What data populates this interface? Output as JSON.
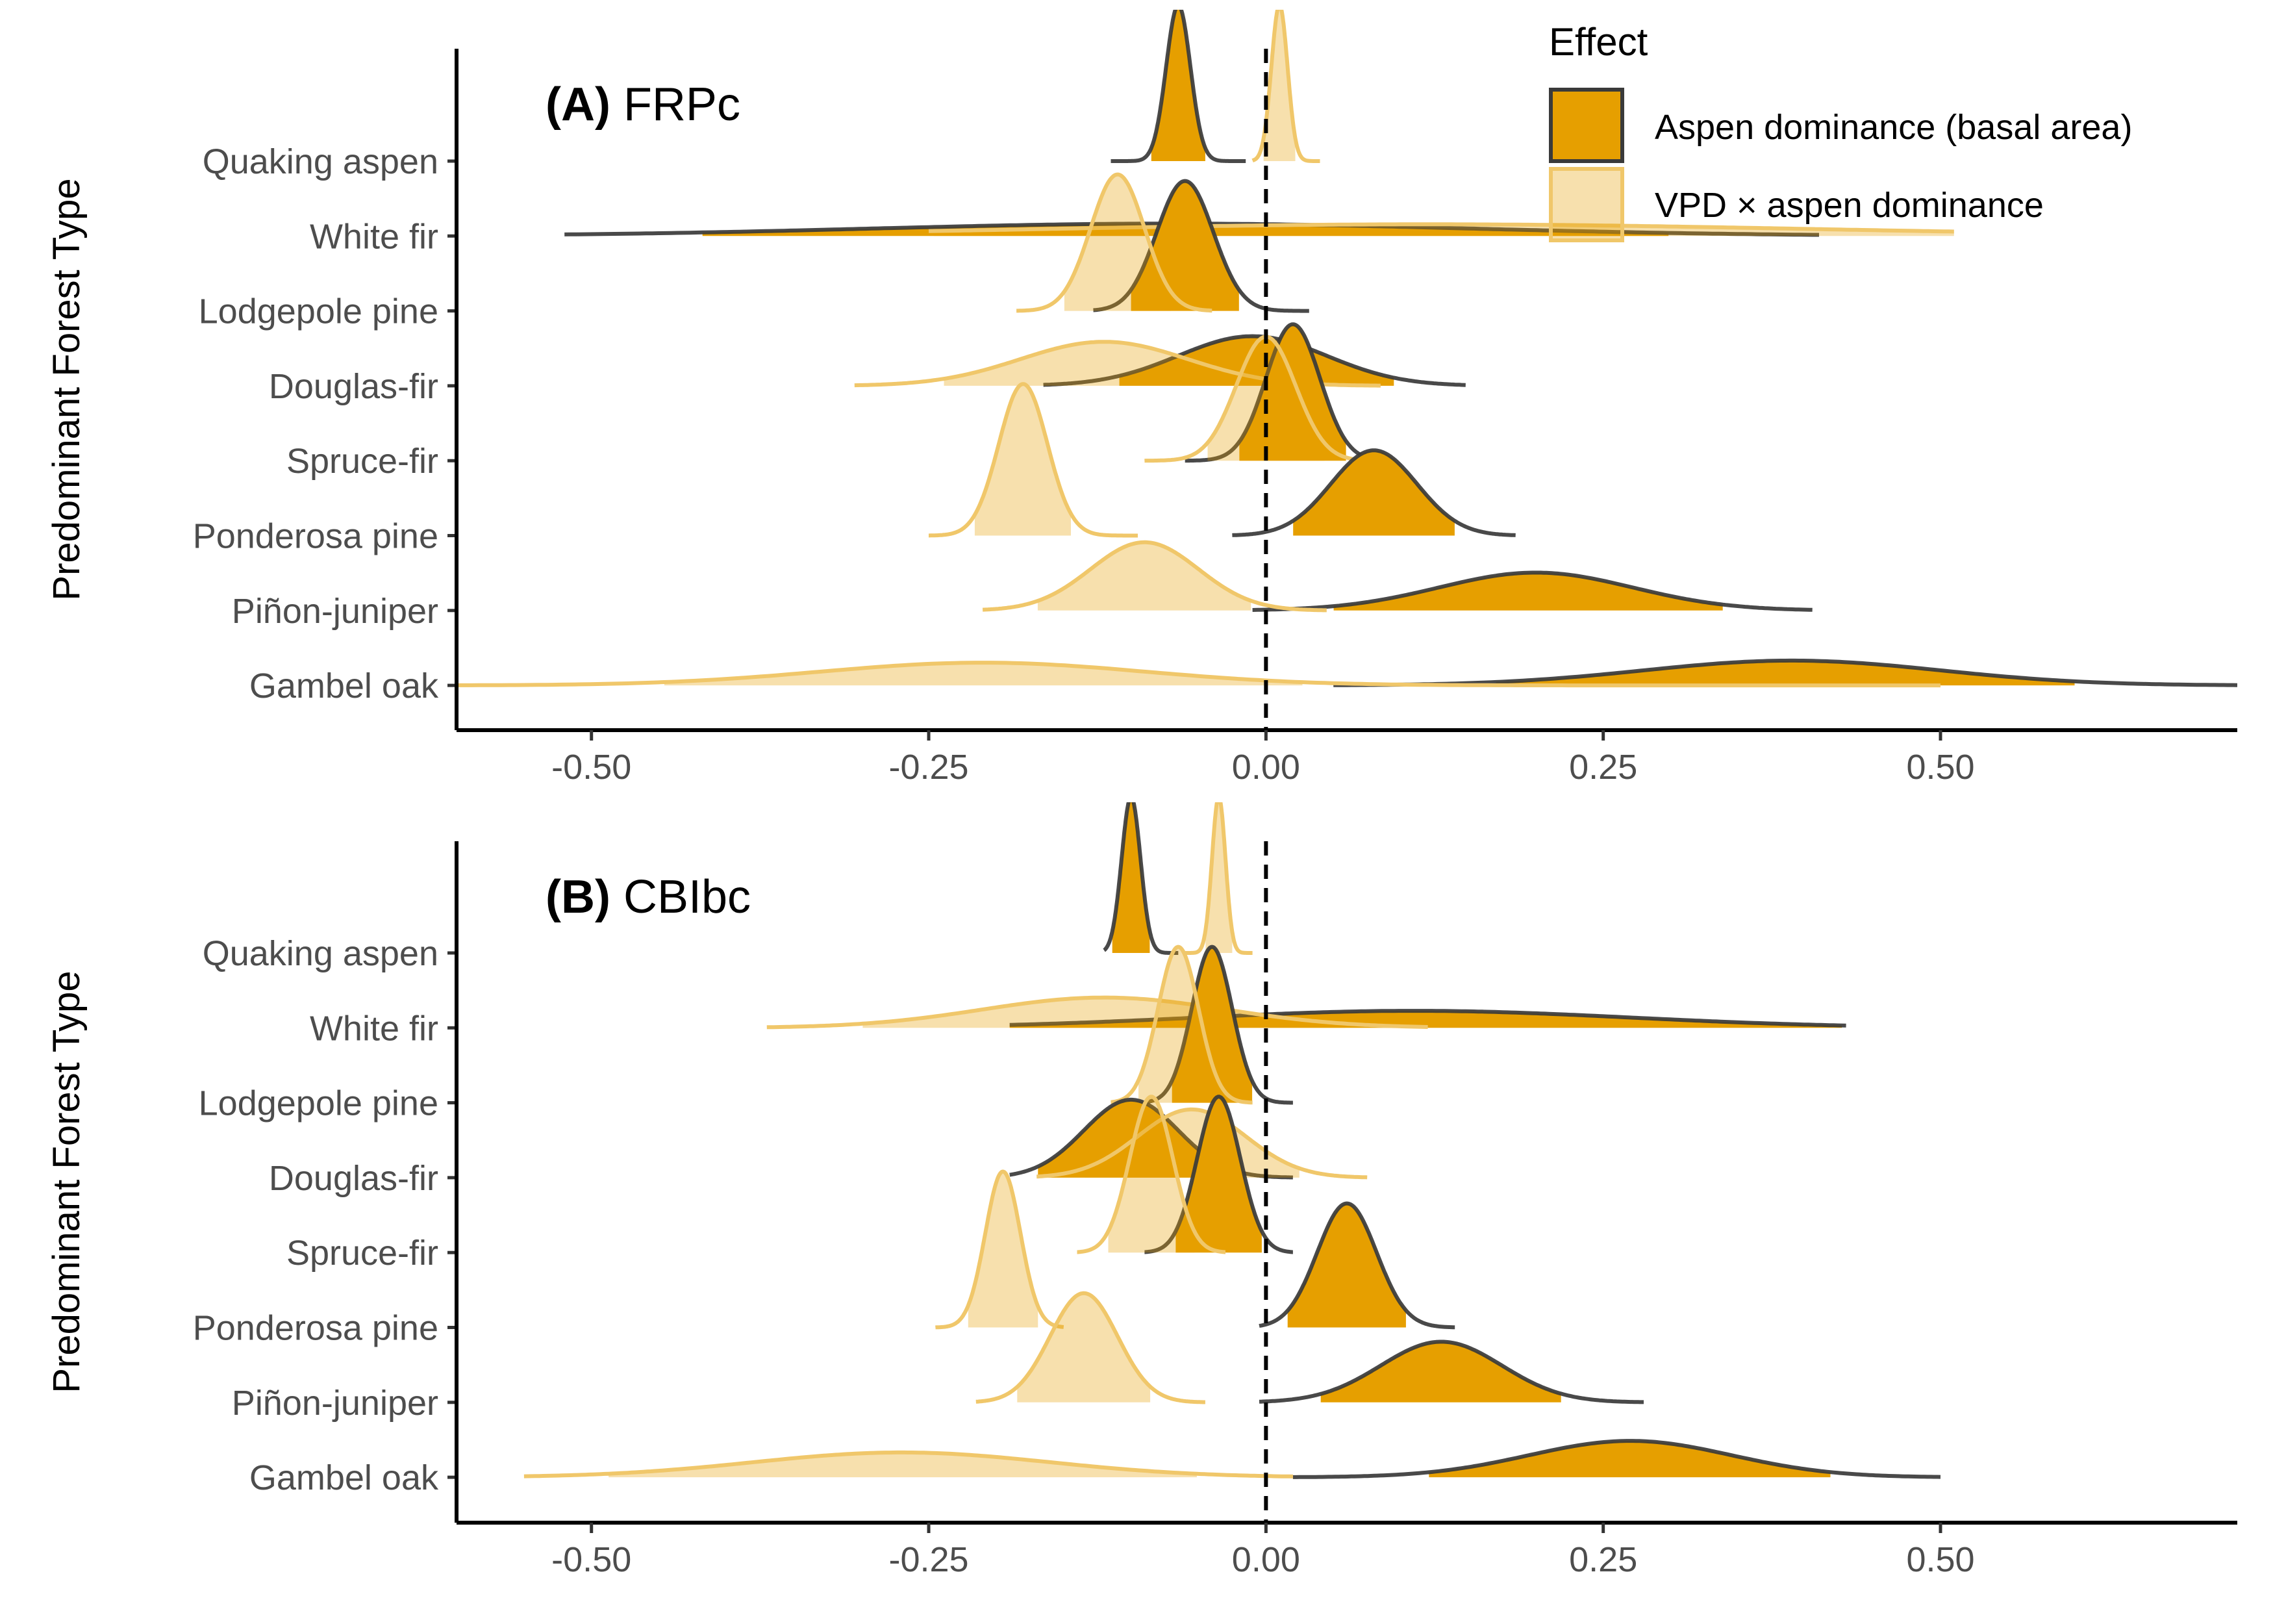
{
  "legend": {
    "title": "Effect",
    "items": [
      {
        "label": "Aspen dominance (basal area)",
        "fill": "#E69F00",
        "stroke": "#3a3a3a",
        "fill_opacity": 1.0
      },
      {
        "label": "VPD × aspen dominance",
        "fill": "#E69F00",
        "stroke": "#F0C76A",
        "fill_opacity": 0.32
      }
    ]
  },
  "chart_data": [
    {
      "type": "ridgeline",
      "panel_letter": "(A)",
      "title": "FRPc",
      "ylabel": "Predominant Forest Type",
      "xlabel": "",
      "xlim": [
        -0.6,
        0.72
      ],
      "x_ticks": [
        -0.5,
        -0.25,
        0.0,
        0.25,
        0.5
      ],
      "x_tick_labels": [
        "-0.50",
        "-0.25",
        "0.00",
        "0.25",
        "0.50"
      ],
      "reference_line_x": 0,
      "categories": [
        "Quaking aspen",
        "White fir",
        "Lodgepole pine",
        "Douglas-fir",
        "Spruce-fir",
        "Ponderosa pine",
        "Piñon-juniper",
        "Gambel oak"
      ],
      "series": [
        {
          "name": "Aspen dominance (basal area)",
          "distributions": [
            {
              "mean": -0.065,
              "sd": 0.009,
              "min": -0.115,
              "max": -0.015,
              "ci": [
                -0.085,
                -0.045
              ]
            },
            {
              "mean": -0.07,
              "sd": 0.22,
              "min": -0.52,
              "max": 0.41,
              "ci": [
                -0.42,
                0.3
              ]
            },
            {
              "mean": -0.06,
              "sd": 0.021,
              "min": -0.128,
              "max": 0.032,
              "ci": [
                -0.1,
                -0.02
              ]
            },
            {
              "mean": -0.01,
              "sd": 0.055,
              "min": -0.165,
              "max": 0.148,
              "ci": [
                -0.11,
                0.095
              ]
            },
            {
              "mean": 0.02,
              "sd": 0.02,
              "min": -0.06,
              "max": 0.095,
              "ci": [
                -0.02,
                0.06
              ]
            },
            {
              "mean": 0.08,
              "sd": 0.032,
              "min": -0.025,
              "max": 0.185,
              "ci": [
                0.02,
                0.14
              ]
            },
            {
              "mean": 0.2,
              "sd": 0.072,
              "min": -0.01,
              "max": 0.405,
              "ci": [
                0.05,
                0.34
              ]
            },
            {
              "mean": 0.39,
              "sd": 0.11,
              "min": 0.05,
              "max": 0.72,
              "ci": [
                0.17,
                0.6
              ]
            }
          ]
        },
        {
          "name": "VPD × aspen dominance",
          "distributions": [
            {
              "mean": 0.01,
              "sd": 0.006,
              "min": -0.01,
              "max": 0.04,
              "ci": [
                -0.002,
                0.022
              ]
            },
            {
              "mean": 0.12,
              "sd": 0.28,
              "min": -0.25,
              "max": 0.51,
              "ci": [
                -0.25,
                0.51
              ]
            },
            {
              "mean": -0.11,
              "sd": 0.02,
              "min": -0.185,
              "max": -0.04,
              "ci": [
                -0.15,
                -0.07
              ]
            },
            {
              "mean": -0.12,
              "sd": 0.062,
              "min": -0.305,
              "max": 0.085,
              "ci": [
                -0.24,
                0.0
              ]
            },
            {
              "mean": 0.0,
              "sd": 0.022,
              "min": -0.09,
              "max": 0.08,
              "ci": [
                -0.044,
                0.044
              ]
            },
            {
              "mean": -0.18,
              "sd": 0.018,
              "min": -0.25,
              "max": -0.095,
              "ci": [
                -0.216,
                -0.144
              ]
            },
            {
              "mean": -0.09,
              "sd": 0.04,
              "min": -0.21,
              "max": 0.045,
              "ci": [
                -0.17,
                -0.01
              ]
            },
            {
              "mean": -0.21,
              "sd": 0.12,
              "min": -0.6,
              "max": 0.5,
              "ci": [
                -0.45,
                0.03
              ]
            }
          ]
        }
      ]
    },
    {
      "type": "ridgeline",
      "panel_letter": "(B)",
      "title": "CBIbc",
      "ylabel": "Predominant Forest Type",
      "xlabel": "",
      "xlim": [
        -0.6,
        0.72
      ],
      "x_ticks": [
        -0.5,
        -0.25,
        0.0,
        0.25,
        0.5
      ],
      "x_tick_labels": [
        "-0.50",
        "-0.25",
        "0.00",
        "0.25",
        "0.50"
      ],
      "reference_line_x": 0,
      "categories": [
        "Quaking aspen",
        "White fir",
        "Lodgepole pine",
        "Douglas-fir",
        "Spruce-fir",
        "Ponderosa pine",
        "Piñon-juniper",
        "Gambel oak"
      ],
      "series": [
        {
          "name": "Aspen dominance (basal area)",
          "distributions": [
            {
              "mean": -0.1,
              "sd": 0.007,
              "min": -0.12,
              "max": -0.065,
              "ci": [
                -0.114,
                -0.086
              ]
            },
            {
              "mean": 0.11,
              "sd": 0.16,
              "min": -0.19,
              "max": 0.43,
              "ci": [
                -0.21,
                0.43
              ]
            },
            {
              "mean": -0.04,
              "sd": 0.015,
              "min": -0.09,
              "max": 0.02,
              "ci": [
                -0.07,
                -0.01
              ]
            },
            {
              "mean": -0.1,
              "sd": 0.035,
              "min": -0.19,
              "max": 0.02,
              "ci": [
                -0.17,
                -0.03
              ]
            },
            {
              "mean": -0.035,
              "sd": 0.016,
              "min": -0.09,
              "max": 0.02,
              "ci": [
                -0.067,
                -0.003
              ]
            },
            {
              "mean": 0.06,
              "sd": 0.022,
              "min": -0.005,
              "max": 0.14,
              "ci": [
                0.016,
                0.104
              ]
            },
            {
              "mean": 0.13,
              "sd": 0.045,
              "min": -0.005,
              "max": 0.28,
              "ci": [
                0.04,
                0.22
              ]
            },
            {
              "mean": 0.27,
              "sd": 0.075,
              "min": 0.02,
              "max": 0.5,
              "ci": [
                0.12,
                0.42
              ]
            }
          ]
        },
        {
          "name": "VPD × aspen dominance",
          "distributions": [
            {
              "mean": -0.035,
              "sd": 0.005,
              "min": -0.06,
              "max": -0.01,
              "ci": [
                -0.045,
                -0.025
              ]
            },
            {
              "mean": -0.12,
              "sd": 0.09,
              "min": -0.37,
              "max": 0.12,
              "ci": [
                -0.3,
                0.06
              ]
            },
            {
              "mean": -0.065,
              "sd": 0.015,
              "min": -0.115,
              "max": -0.01,
              "ci": [
                -0.095,
                -0.035
              ]
            },
            {
              "mean": -0.055,
              "sd": 0.04,
              "min": -0.17,
              "max": 0.075,
              "ci": [
                -0.135,
                0.025
              ]
            },
            {
              "mean": -0.085,
              "sd": 0.016,
              "min": -0.14,
              "max": -0.03,
              "ci": [
                -0.117,
                -0.053
              ]
            },
            {
              "mean": -0.195,
              "sd": 0.013,
              "min": -0.245,
              "max": -0.15,
              "ci": [
                -0.221,
                -0.169
              ]
            },
            {
              "mean": -0.135,
              "sd": 0.025,
              "min": -0.215,
              "max": -0.045,
              "ci": [
                -0.185,
                -0.085
              ]
            },
            {
              "mean": -0.27,
              "sd": 0.11,
              "min": -0.55,
              "max": 0.02,
              "ci": [
                -0.49,
                -0.05
              ]
            }
          ]
        }
      ]
    }
  ]
}
